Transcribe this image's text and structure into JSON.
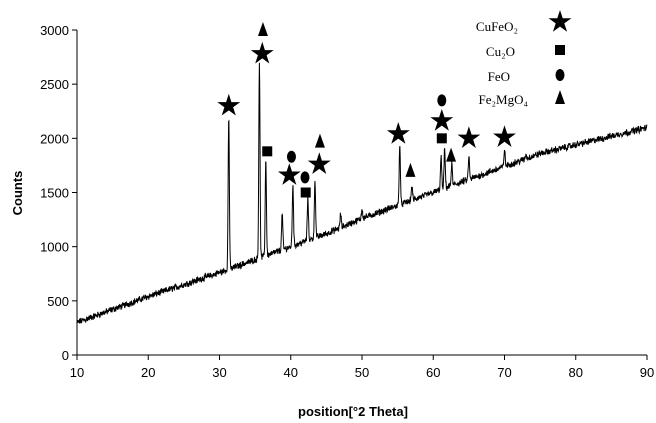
{
  "chart_data": {
    "type": "line",
    "title": "",
    "xlabel": "position[°2 Theta]",
    "ylabel": "Counts",
    "xlim": [
      10,
      90
    ],
    "ylim": [
      0,
      3000
    ],
    "x_ticks": [
      "10",
      "20",
      "30",
      "40",
      "50",
      "60",
      "70",
      "80",
      "90"
    ],
    "y_ticks": [
      "0",
      "500",
      "1000",
      "1500",
      "2000",
      "2500",
      "3000"
    ],
    "grid": false,
    "legend_position": "top-right",
    "legend": [
      {
        "label": "CuFeO₂",
        "marker": "star"
      },
      {
        "label": "Cu₂O",
        "marker": "square"
      },
      {
        "label": "FeO",
        "marker": "circle"
      },
      {
        "label": "Fe₂MgO₄",
        "marker": "triangle"
      }
    ],
    "baseline": [
      [
        10,
        300
      ],
      [
        15,
        420
      ],
      [
        20,
        540
      ],
      [
        25,
        650
      ],
      [
        30,
        760
      ],
      [
        35,
        880
      ],
      [
        40,
        1000
      ],
      [
        45,
        1120
      ],
      [
        50,
        1260
      ],
      [
        55,
        1380
      ],
      [
        60,
        1500
      ],
      [
        65,
        1620
      ],
      [
        70,
        1740
      ],
      [
        75,
        1860
      ],
      [
        80,
        1940
      ],
      [
        85,
        2020
      ],
      [
        90,
        2100
      ]
    ],
    "noise_amplitude": 25,
    "peaks": [
      {
        "x": 31.3,
        "y": 2200
      },
      {
        "x": 35.6,
        "y": 2700
      },
      {
        "x": 36.5,
        "y": 1800
      },
      {
        "x": 38.8,
        "y": 1310
      },
      {
        "x": 40.3,
        "y": 1580
      },
      {
        "x": 42.4,
        "y": 1450
      },
      {
        "x": 43.4,
        "y": 1620
      },
      {
        "x": 47.0,
        "y": 1300
      },
      {
        "x": 50.0,
        "y": 1350
      },
      {
        "x": 55.3,
        "y": 1950
      },
      {
        "x": 57.0,
        "y": 1560
      },
      {
        "x": 61.1,
        "y": 1830
      },
      {
        "x": 61.6,
        "y": 1900
      },
      {
        "x": 62.6,
        "y": 1760
      },
      {
        "x": 65.0,
        "y": 1830
      },
      {
        "x": 70.0,
        "y": 1900
      },
      {
        "x": 73.0,
        "y": 1850
      }
    ],
    "peak_markers": [
      {
        "x": 31.3,
        "y": 2300,
        "marker": "star"
      },
      {
        "x": 36.0,
        "y": 2780,
        "marker": "star"
      },
      {
        "x": 36.1,
        "y": 3000,
        "marker": "triangle"
      },
      {
        "x": 36.7,
        "y": 1880,
        "marker": "square"
      },
      {
        "x": 39.8,
        "y": 1660,
        "marker": "star"
      },
      {
        "x": 40.1,
        "y": 1830,
        "marker": "circle"
      },
      {
        "x": 42.0,
        "y": 1640,
        "marker": "circle"
      },
      {
        "x": 42.1,
        "y": 1500,
        "marker": "square"
      },
      {
        "x": 44.0,
        "y": 1760,
        "marker": "star"
      },
      {
        "x": 44.1,
        "y": 1970,
        "marker": "triangle"
      },
      {
        "x": 55.1,
        "y": 2040,
        "marker": "star"
      },
      {
        "x": 56.8,
        "y": 1700,
        "marker": "triangle"
      },
      {
        "x": 61.2,
        "y": 2350,
        "marker": "circle"
      },
      {
        "x": 61.2,
        "y": 2160,
        "marker": "star"
      },
      {
        "x": 61.2,
        "y": 2000,
        "marker": "square"
      },
      {
        "x": 62.5,
        "y": 1840,
        "marker": "triangle"
      },
      {
        "x": 65.0,
        "y": 2000,
        "marker": "star"
      },
      {
        "x": 70.0,
        "y": 2010,
        "marker": "star"
      }
    ]
  }
}
